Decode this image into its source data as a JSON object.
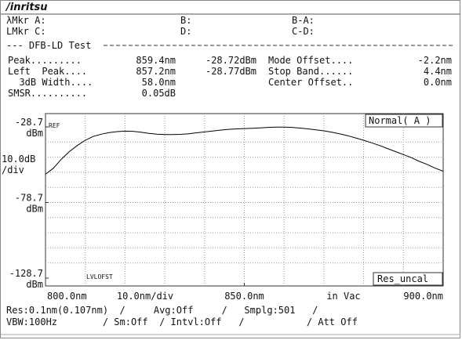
{
  "header": {
    "logo": "/inritsu"
  },
  "markers": [
    [
      "λMkr A:",
      "B:",
      "B-A:"
    ],
    [
      "LMkr C:",
      "D:",
      "C-D:"
    ]
  ],
  "test": {
    "title": "--- DFB-LD Test",
    "rows": [
      [
        "Peak.........",
        "859.4nm",
        "-28.72dBm",
        "Mode Offset....",
        "-2.2nm"
      ],
      [
        "Left  Peak....",
        "857.2nm",
        "-28.77dBm",
        "Stop Band......",
        "4.4nm"
      ],
      [
        "  3dB Width....",
        "58.0nm",
        "Center Offset..",
        "0.0nm"
      ],
      [
        "SMSR..........",
        "0.05dB"
      ]
    ]
  },
  "chart_data": {
    "type": "line",
    "color": "#000000",
    "grid": true,
    "x": [
      800,
      802,
      804,
      806,
      808,
      810,
      812,
      814,
      816,
      818,
      820,
      822,
      824,
      826,
      828,
      830,
      832,
      834,
      836,
      838,
      840,
      842,
      844,
      846,
      848,
      850,
      852,
      854,
      856,
      858,
      860,
      862,
      864,
      866,
      868,
      870,
      872,
      874,
      876,
      878,
      880,
      882,
      884,
      886,
      888,
      890,
      892,
      894,
      896,
      898,
      900
    ],
    "values": [
      -60,
      -56,
      -50,
      -45,
      -41,
      -37.5,
      -35,
      -33.5,
      -32.5,
      -31.8,
      -31.5,
      -31.6,
      -32.2,
      -33,
      -33.5,
      -33.8,
      -33.8,
      -33.6,
      -33.2,
      -32.6,
      -32,
      -31.4,
      -30.8,
      -30.3,
      -30,
      -29.8,
      -29.6,
      -29.3,
      -29,
      -28.8,
      -28.8,
      -29,
      -29.5,
      -30,
      -30.6,
      -31.3,
      -32.2,
      -33.3,
      -34.5,
      -36,
      -37.5,
      -39.2,
      -41,
      -43,
      -45,
      -47,
      -49,
      -51.5,
      -53.5,
      -56,
      -58
    ],
    "xlim": [
      800,
      900
    ],
    "ylim": [
      -128.7,
      -28.7
    ],
    "xticks": [
      {
        "value": 800,
        "label": "800.0nm"
      },
      {
        "value": 850,
        "label": "850.0nm"
      },
      {
        "value": 900,
        "label": "900.0nm"
      }
    ],
    "yticks": [
      {
        "value": -28.7,
        "label": "-28.7"
      },
      {
        "value": -78.7,
        "label": "-78.7"
      },
      {
        "value": -128.7,
        "label": "-128.7"
      }
    ],
    "y_unit": "dBm",
    "y_scale": [
      "10.0dB",
      "/div"
    ],
    "x_scale": "10.0nm/div",
    "x_medium": "in Vac",
    "annotations": {
      "ref": "REF",
      "level_offset": "LVLOFST",
      "mode": "Normal( A )",
      "status": "Res_uncal"
    }
  },
  "footer": [
    "Res:0.1nm(0.107nm)  /     Avg:Off     /   Smplg:501   /",
    "VBW:100Hz        / Sm:Off  / Intvl:Off   /           / Att Off"
  ]
}
